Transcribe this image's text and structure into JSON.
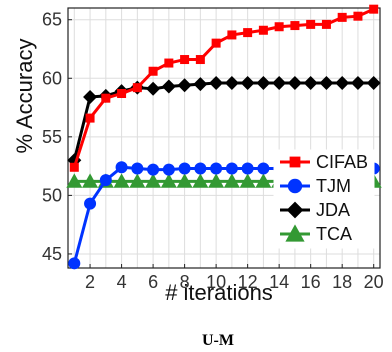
{
  "chart_data": {
    "type": "line",
    "x": [
      1,
      2,
      3,
      4,
      5,
      6,
      7,
      8,
      9,
      10,
      11,
      12,
      13,
      14,
      15,
      16,
      17,
      18,
      19,
      20
    ],
    "xticks": [
      2,
      4,
      6,
      8,
      10,
      12,
      14,
      16,
      18,
      20
    ],
    "yticks": [
      45,
      50,
      55,
      60,
      65
    ],
    "xlim": [
      0.6,
      20.4
    ],
    "ylim": [
      43.8,
      66
    ],
    "xlabel": "# iterations",
    "ylabel": "% Accuracy",
    "caption": "U-M",
    "grid": true,
    "legend_position": "right",
    "series": [
      {
        "name": "CIFAB",
        "color": "#ff0000",
        "marker": "square",
        "values": [
          52.4,
          56.6,
          58.3,
          58.7,
          59.2,
          60.6,
          61.3,
          61.6,
          61.6,
          63.0,
          63.7,
          63.9,
          64.1,
          64.4,
          64.5,
          64.6,
          64.6,
          65.2,
          65.3,
          65.9
        ]
      },
      {
        "name": "TJM",
        "color": "#0033ff",
        "marker": "circle",
        "values": [
          44.2,
          49.3,
          51.3,
          52.4,
          52.3,
          52.2,
          52.2,
          52.3,
          52.3,
          52.3,
          52.3,
          52.3,
          52.3,
          52.3,
          52.3,
          52.3,
          52.3,
          52.3,
          52.3,
          52.3
        ]
      },
      {
        "name": "JDA",
        "color": "#000000",
        "marker": "diamond",
        "values": [
          53.0,
          58.4,
          58.5,
          58.9,
          59.2,
          59.1,
          59.3,
          59.4,
          59.5,
          59.6,
          59.6,
          59.6,
          59.6,
          59.6,
          59.6,
          59.6,
          59.6,
          59.6,
          59.6,
          59.6
        ]
      },
      {
        "name": "TCA",
        "color": "#339933",
        "marker": "triangle",
        "values": [
          51.2,
          51.2,
          51.2,
          51.2,
          51.2,
          51.2,
          51.2,
          51.2,
          51.2,
          51.2,
          51.2,
          51.2,
          51.2,
          51.2,
          51.2,
          51.2,
          51.2,
          51.2,
          51.2,
          51.2
        ]
      }
    ]
  }
}
